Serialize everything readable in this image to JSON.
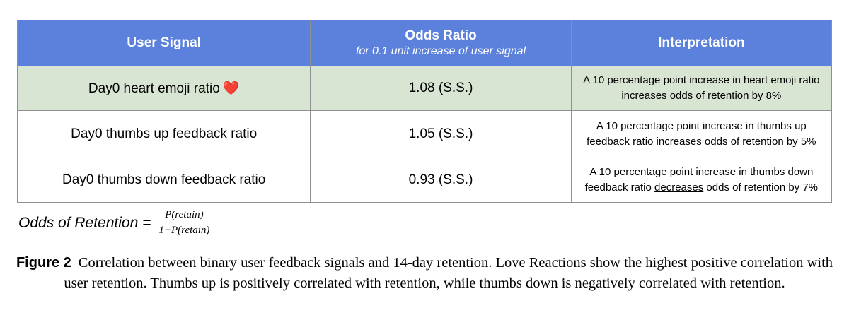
{
  "colors": {
    "header_bg": "#5b81dc",
    "header_text": "#ffffff",
    "highlight_row_bg": "#d9e5d3",
    "border": "#8f8f8f",
    "heart_red": "#ee2e24"
  },
  "table": {
    "columns": [
      {
        "label": "User Signal",
        "sublabel": ""
      },
      {
        "label": "Odds Ratio",
        "sublabel": "for 0.1 unit increase of user signal"
      },
      {
        "label": "Interpretation",
        "sublabel": ""
      }
    ],
    "rows": [
      {
        "signal": "Day0 heart emoji ratio",
        "emoji": "❤️",
        "odds_ratio": "1.08 (S.S.)",
        "interp_before": "A 10 percentage point increase in heart emoji ratio ",
        "interp_underline": "increases",
        "interp_after": " odds of retention by 8%",
        "highlighted": true
      },
      {
        "signal": "Day0 thumbs up feedback ratio",
        "emoji": "",
        "odds_ratio": "1.05 (S.S.)",
        "interp_before": "A 10 percentage point increase in thumbs up feedback ratio ",
        "interp_underline": "increases",
        "interp_after": " odds of retention by 5%",
        "highlighted": false
      },
      {
        "signal": "Day0 thumbs down feedback ratio",
        "emoji": "",
        "odds_ratio": "0.93 (S.S.)",
        "interp_before": "A 10 percentage point increase in thumbs down feedback ratio ",
        "interp_underline": "decreases",
        "interp_after": " odds of retention by 7%",
        "highlighted": false
      }
    ]
  },
  "formula": {
    "lhs": "Odds of Retention =",
    "numerator": "P(retain)",
    "denominator": "1−P(retain)"
  },
  "caption": {
    "label": "Figure 2",
    "text": "Correlation between binary user feedback signals and 14-day retention. Love Reactions show the highest positive correlation with user retention. Thumbs up is positively correlated with retention, while thumbs down is negatively correlated with retention."
  }
}
